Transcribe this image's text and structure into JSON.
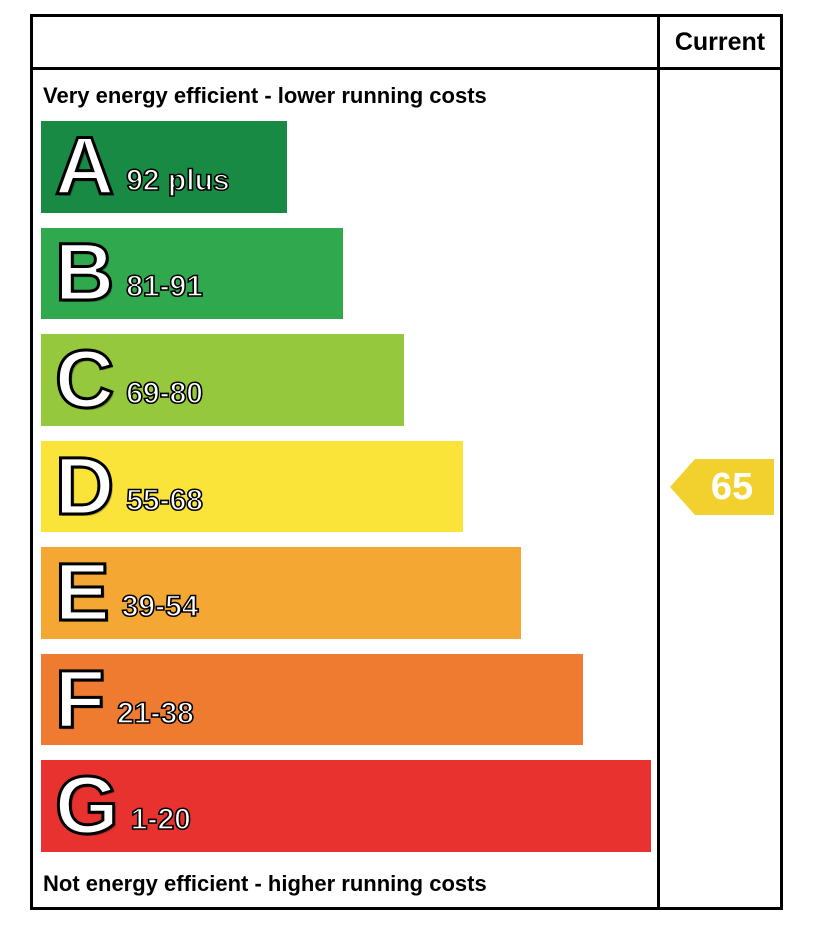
{
  "chart_data": {
    "type": "bar",
    "subtype": "epc-energy-efficiency-rating",
    "orientation": "horizontal",
    "column_header": "Current",
    "top_label": "Very energy efficient - lower running costs",
    "bottom_label": "Not energy efficient - higher running costs",
    "categories": [
      "A",
      "B",
      "C",
      "D",
      "E",
      "F",
      "G"
    ],
    "bands": [
      {
        "letter": "A",
        "range": "92 plus",
        "color": "#188a43",
        "width_pct": 40
      },
      {
        "letter": "B",
        "range": "81-91",
        "color": "#2fa84e",
        "width_pct": 49
      },
      {
        "letter": "C",
        "range": "69-80",
        "color": "#95c83d",
        "width_pct": 59
      },
      {
        "letter": "D",
        "range": "55-68",
        "color": "#fbe43a",
        "width_pct": 68.5
      },
      {
        "letter": "E",
        "range": "39-54",
        "color": "#f5a733",
        "width_pct": 78
      },
      {
        "letter": "F",
        "range": "21-38",
        "color": "#ee7b30",
        "width_pct": 88
      },
      {
        "letter": "G",
        "range": "1-20",
        "color": "#e8322f",
        "width_pct": 99
      }
    ],
    "current_rating": {
      "value": "65",
      "band": "D",
      "band_index": 3,
      "color": "#f2d02d"
    }
  }
}
